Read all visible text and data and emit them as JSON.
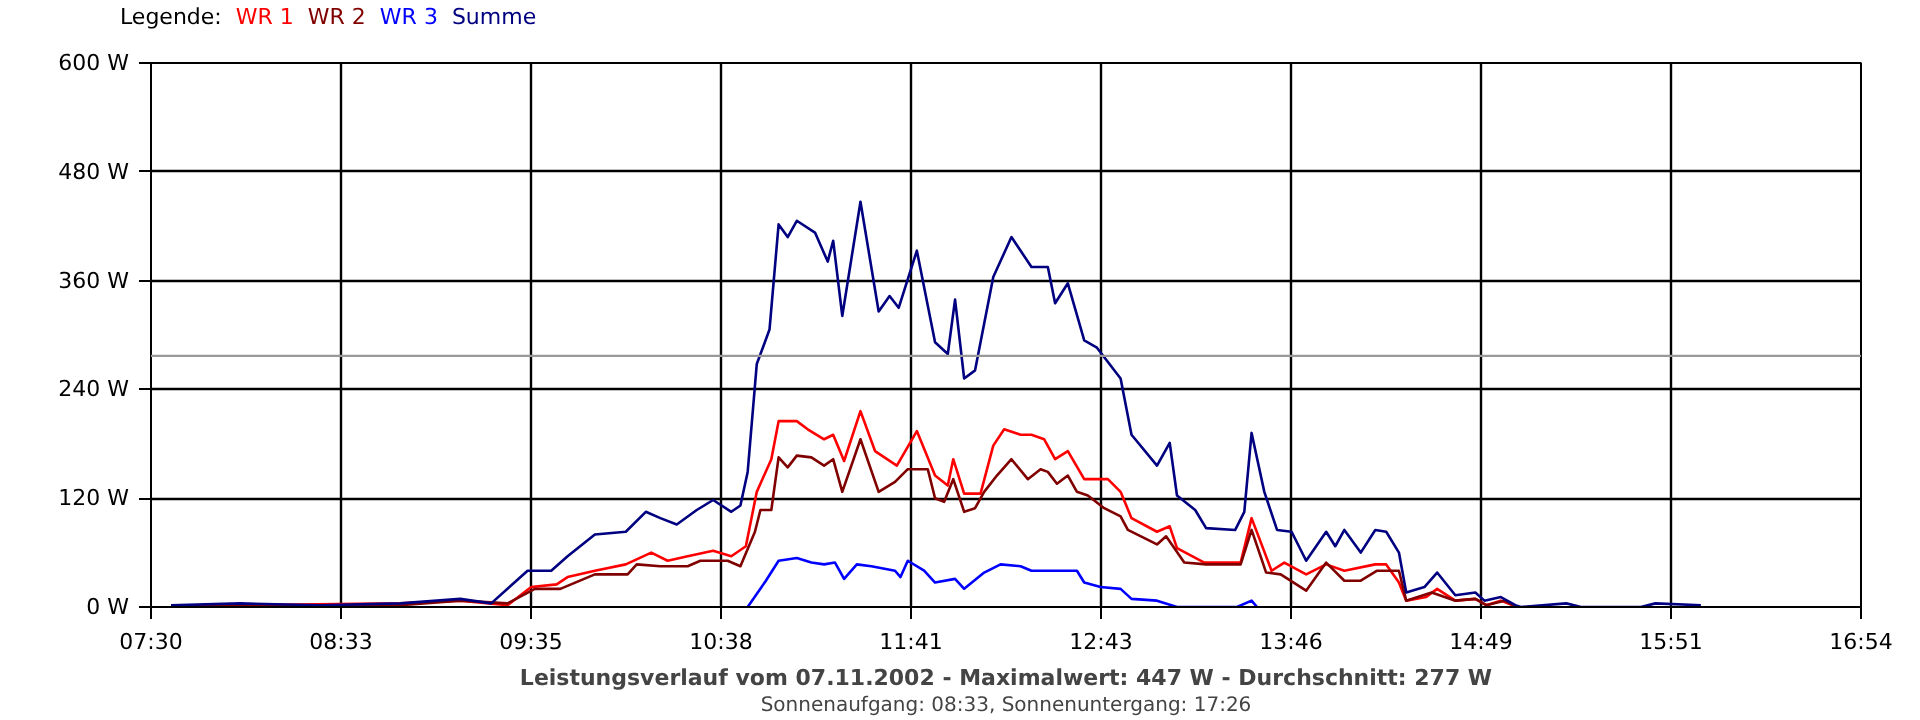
{
  "chart_data": {
    "type": "line",
    "title": "Leistungsverlauf vom 07.11.2002 - Maximalwert: 447 W - Durchschnitt: 277 W",
    "subtitle": "Sonnenaufgang: 08:33, Sonnenuntergang: 17:26",
    "legend_title": "Legende:",
    "grid": true,
    "line_style": "solid",
    "xlim": [
      7.5,
      16.9
    ],
    "xticks": [
      {
        "value": 7.5,
        "label": "07:30"
      },
      {
        "value": 8.5444,
        "label": "08:33"
      },
      {
        "value": 9.5889,
        "label": "09:35"
      },
      {
        "value": 10.6333,
        "label": "10:38"
      },
      {
        "value": 11.6778,
        "label": "11:41"
      },
      {
        "value": 12.7222,
        "label": "12:43"
      },
      {
        "value": 13.7667,
        "label": "13:46"
      },
      {
        "value": 14.8111,
        "label": "14:49"
      },
      {
        "value": 15.8556,
        "label": "15:51"
      },
      {
        "value": 16.9,
        "label": "16:54"
      }
    ],
    "ylim": [
      0,
      600
    ],
    "yticks": [
      {
        "value": 0,
        "label": "0 W"
      },
      {
        "value": 120,
        "label": "120 W"
      },
      {
        "value": 240,
        "label": "240 W"
      },
      {
        "value": 360,
        "label": "360 W"
      },
      {
        "value": 480,
        "label": "480 W"
      },
      {
        "value": 600,
        "label": "600 W"
      }
    ],
    "ref_lines": [
      {
        "axis": "y",
        "value": 277,
        "color": "#999999"
      }
    ],
    "series": [
      {
        "name": "WR 1",
        "color": "#ff0000",
        "x": [
          7.61,
          7.99,
          8.87,
          9.2,
          9.46,
          9.59,
          9.73,
          9.79,
          9.94,
          10.11,
          10.25,
          10.34,
          10.45,
          10.59,
          10.69,
          10.77,
          10.83,
          10.91,
          10.95,
          11.05,
          11.11,
          11.2,
          11.25,
          11.31,
          11.4,
          11.48,
          11.6,
          11.71,
          11.81,
          11.88,
          11.91,
          11.97,
          12.06,
          12.13,
          12.19,
          12.28,
          12.34,
          12.41,
          12.47,
          12.54,
          12.63,
          12.76,
          12.83,
          12.89,
          13.03,
          13.1,
          13.14,
          13.29,
          13.49,
          13.55,
          13.66,
          13.73,
          13.85,
          13.96,
          14.06,
          14.23,
          14.29,
          14.36,
          14.4,
          14.51,
          14.57,
          14.67,
          14.78,
          14.84,
          14.92,
          15.01
        ],
        "values": [
          2,
          2,
          4,
          7,
          2,
          22,
          25,
          33,
          40,
          47,
          60,
          51,
          56,
          62,
          56,
          67,
          127,
          163,
          205,
          205,
          196,
          185,
          190,
          161,
          216,
          172,
          156,
          194,
          145,
          134,
          163,
          125,
          125,
          178,
          196,
          190,
          190,
          185,
          163,
          172,
          141,
          141,
          127,
          98,
          83,
          89,
          65,
          49,
          49,
          98,
          40,
          49,
          36,
          47,
          40,
          47,
          47,
          27,
          7,
          11,
          20,
          7,
          9,
          2,
          7,
          0
        ]
      },
      {
        "name": "WR 2",
        "color": "#800000",
        "x": [
          7.61,
          7.99,
          8.87,
          9.2,
          9.46,
          9.61,
          9.75,
          9.94,
          10.12,
          10.17,
          10.3,
          10.45,
          10.52,
          10.67,
          10.74,
          10.82,
          10.85,
          10.91,
          10.95,
          11.0,
          11.05,
          11.13,
          11.2,
          11.25,
          11.3,
          11.4,
          11.5,
          11.59,
          11.66,
          11.77,
          11.81,
          11.86,
          11.91,
          11.97,
          12.03,
          12.08,
          12.15,
          12.23,
          12.32,
          12.39,
          12.43,
          12.48,
          12.54,
          12.59,
          12.65,
          12.74,
          12.83,
          12.87,
          13.03,
          13.08,
          13.18,
          13.3,
          13.49,
          13.55,
          13.63,
          13.71,
          13.85,
          13.96,
          14.06,
          14.15,
          14.24,
          14.36,
          14.4,
          14.54,
          14.67,
          14.78,
          14.84,
          14.94,
          15.01
        ],
        "values": [
          2,
          2,
          2,
          7,
          4,
          20,
          20,
          36,
          36,
          47,
          45,
          45,
          51,
          51,
          45,
          83,
          107,
          107,
          165,
          154,
          167,
          165,
          156,
          163,
          127,
          185,
          127,
          138,
          152,
          152,
          120,
          116,
          141,
          105,
          109,
          127,
          145,
          163,
          141,
          152,
          149,
          136,
          145,
          127,
          123,
          109,
          100,
          85,
          69,
          78,
          49,
          47,
          47,
          85,
          38,
          36,
          18,
          49,
          29,
          29,
          40,
          40,
          7,
          16,
          7,
          9,
          2,
          7,
          0
        ]
      },
      {
        "name": "WR 3",
        "color": "#0000ff",
        "x": [
          10.78,
          10.88,
          10.95,
          11.05,
          11.13,
          11.2,
          11.26,
          11.31,
          11.38,
          11.46,
          11.59,
          11.62,
          11.66,
          11.75,
          11.81,
          11.92,
          11.97,
          12.08,
          12.17,
          12.28,
          12.34,
          12.59,
          12.63,
          12.72,
          12.83,
          12.89,
          13.03,
          13.14,
          13.47,
          13.55,
          13.58
        ],
        "values": [
          0,
          29,
          51,
          54,
          49,
          47,
          49,
          31,
          47,
          45,
          40,
          33,
          51,
          40,
          27,
          31,
          20,
          38,
          47,
          45,
          40,
          40,
          27,
          22,
          20,
          9,
          7,
          0,
          0,
          7,
          0
        ]
      },
      {
        "name": "Summe",
        "color": "#000080",
        "x": [
          7.61,
          7.99,
          8.43,
          8.87,
          9.2,
          9.37,
          9.57,
          9.7,
          9.79,
          9.94,
          10.11,
          10.22,
          10.3,
          10.39,
          10.5,
          10.59,
          10.69,
          10.74,
          10.78,
          10.83,
          10.9,
          10.95,
          11.0,
          11.05,
          11.15,
          11.22,
          11.25,
          11.3,
          11.4,
          11.5,
          11.56,
          11.61,
          11.71,
          11.81,
          11.88,
          11.92,
          11.97,
          12.03,
          12.13,
          12.23,
          12.34,
          12.43,
          12.47,
          12.54,
          12.63,
          12.7,
          12.83,
          12.89,
          13.03,
          13.1,
          13.14,
          13.24,
          13.3,
          13.46,
          13.51,
          13.55,
          13.62,
          13.69,
          13.77,
          13.85,
          13.96,
          14.01,
          14.06,
          14.15,
          14.23,
          14.29,
          14.36,
          14.4,
          14.5,
          14.57,
          14.67,
          14.78,
          14.83,
          14.92,
          15.0,
          15.03,
          15.28,
          15.36,
          15.69,
          15.77,
          16.02
        ],
        "values": [
          2,
          4,
          2,
          4,
          9,
          4,
          40,
          40,
          56,
          80,
          83,
          105,
          98,
          91,
          107,
          118,
          105,
          112,
          149,
          268,
          306,
          422,
          408,
          426,
          413,
          381,
          404,
          321,
          447,
          326,
          343,
          330,
          393,
          292,
          279,
          339,
          252,
          261,
          364,
          408,
          375,
          375,
          335,
          357,
          294,
          286,
          252,
          190,
          156,
          181,
          123,
          107,
          87,
          85,
          105,
          192,
          127,
          85,
          83,
          51,
          83,
          67,
          85,
          60,
          85,
          83,
          60,
          16,
          22,
          38,
          13,
          16,
          7,
          11,
          2,
          0,
          4,
          0,
          0,
          4,
          2
        ]
      }
    ]
  }
}
